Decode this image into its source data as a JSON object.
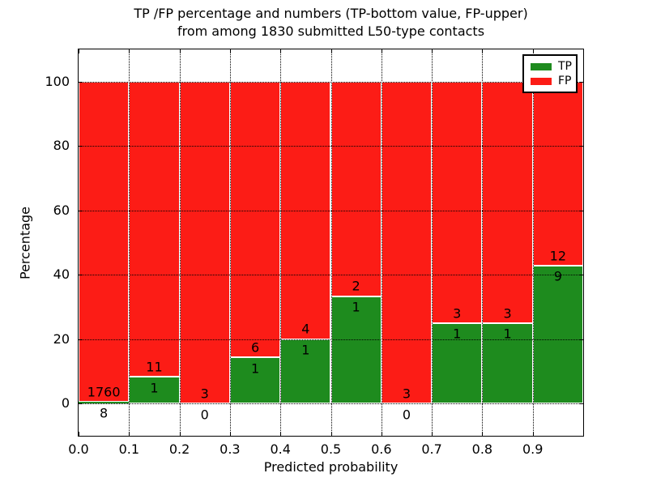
{
  "figure": {
    "title_line1": "TP /FP percentage and numbers (TP-bottom value, FP-upper)",
    "title_line2": "from among 1830 submitted L50-type contacts"
  },
  "colors": {
    "tp_green": "#1e8b1e",
    "fp_red": "#fc1c16",
    "grid": "#000000",
    "background": "#ffffff",
    "text": "#000000"
  },
  "chart_data": {
    "type": "bar",
    "stacked": true,
    "normalized_to_percent": true,
    "title": "TP /FP percentage and numbers (TP-bottom value, FP-upper)\nfrom among 1830 submitted L50-type contacts",
    "xlabel": "Predicted probability",
    "ylabel": "Percentage",
    "total_submitted_contacts": 1830,
    "contact_type": "L50",
    "xlim": [
      0.0,
      1.0
    ],
    "ylim": [
      -10,
      110
    ],
    "grid": "dotted, on, drawn above bars",
    "legend_position": "upper right",
    "legend_entries": [
      {
        "label": "TP",
        "color": "#1e8b1e"
      },
      {
        "label": "FP",
        "color": "#fc1c16"
      }
    ],
    "xticks": [
      {
        "value": 0.0,
        "label": "0.0"
      },
      {
        "value": 0.1,
        "label": "0.1"
      },
      {
        "value": 0.2,
        "label": "0.2"
      },
      {
        "value": 0.3,
        "label": "0.3"
      },
      {
        "value": 0.4,
        "label": "0.4"
      },
      {
        "value": 0.5,
        "label": "0.5"
      },
      {
        "value": 0.6,
        "label": "0.6"
      },
      {
        "value": 0.7,
        "label": "0.7"
      },
      {
        "value": 0.8,
        "label": "0.8"
      },
      {
        "value": 0.9,
        "label": "0.9"
      }
    ],
    "yticks": [
      {
        "value": 0,
        "label": "0"
      },
      {
        "value": 20,
        "label": "20"
      },
      {
        "value": 40,
        "label": "40"
      },
      {
        "value": 60,
        "label": "60"
      },
      {
        "value": 80,
        "label": "80"
      },
      {
        "value": 100,
        "label": "100"
      }
    ],
    "bins": [
      {
        "x0": 0.0,
        "x1": 0.1,
        "tp": 8,
        "fp": 1760,
        "tp_label": "8",
        "fp_label": "1760",
        "tp_pct": 0.45
      },
      {
        "x0": 0.1,
        "x1": 0.2,
        "tp": 1,
        "fp": 11,
        "tp_label": "1",
        "fp_label": "11",
        "tp_pct": 8.33
      },
      {
        "x0": 0.2,
        "x1": 0.3,
        "tp": 0,
        "fp": 3,
        "tp_label": "0",
        "fp_label": "3",
        "tp_pct": 0.0
      },
      {
        "x0": 0.3,
        "x1": 0.4,
        "tp": 1,
        "fp": 6,
        "tp_label": "1",
        "fp_label": "6",
        "tp_pct": 14.29
      },
      {
        "x0": 0.4,
        "x1": 0.5,
        "tp": 1,
        "fp": 4,
        "tp_label": "1",
        "fp_label": "4",
        "tp_pct": 20.0
      },
      {
        "x0": 0.5,
        "x1": 0.6,
        "tp": 1,
        "fp": 2,
        "tp_label": "1",
        "fp_label": "2",
        "tp_pct": 33.33
      },
      {
        "x0": 0.6,
        "x1": 0.7,
        "tp": 0,
        "fp": 3,
        "tp_label": "0",
        "fp_label": "3",
        "tp_pct": 0.0
      },
      {
        "x0": 0.7,
        "x1": 0.8,
        "tp": 1,
        "fp": 3,
        "tp_label": "1",
        "fp_label": "3",
        "tp_pct": 25.0
      },
      {
        "x0": 0.8,
        "x1": 0.9,
        "tp": 1,
        "fp": 3,
        "tp_label": "1",
        "fp_label": "3",
        "tp_pct": 25.0
      },
      {
        "x0": 0.9,
        "x1": 1.0,
        "tp": 9,
        "fp": 12,
        "tp_label": "9",
        "fp_label": "12",
        "tp_pct": 42.86
      }
    ],
    "series": [
      {
        "name": "TP",
        "values": [
          8,
          1,
          0,
          1,
          1,
          1,
          0,
          1,
          1,
          9
        ]
      },
      {
        "name": "FP",
        "values": [
          1760,
          11,
          3,
          6,
          4,
          2,
          3,
          3,
          3,
          12
        ]
      }
    ]
  }
}
